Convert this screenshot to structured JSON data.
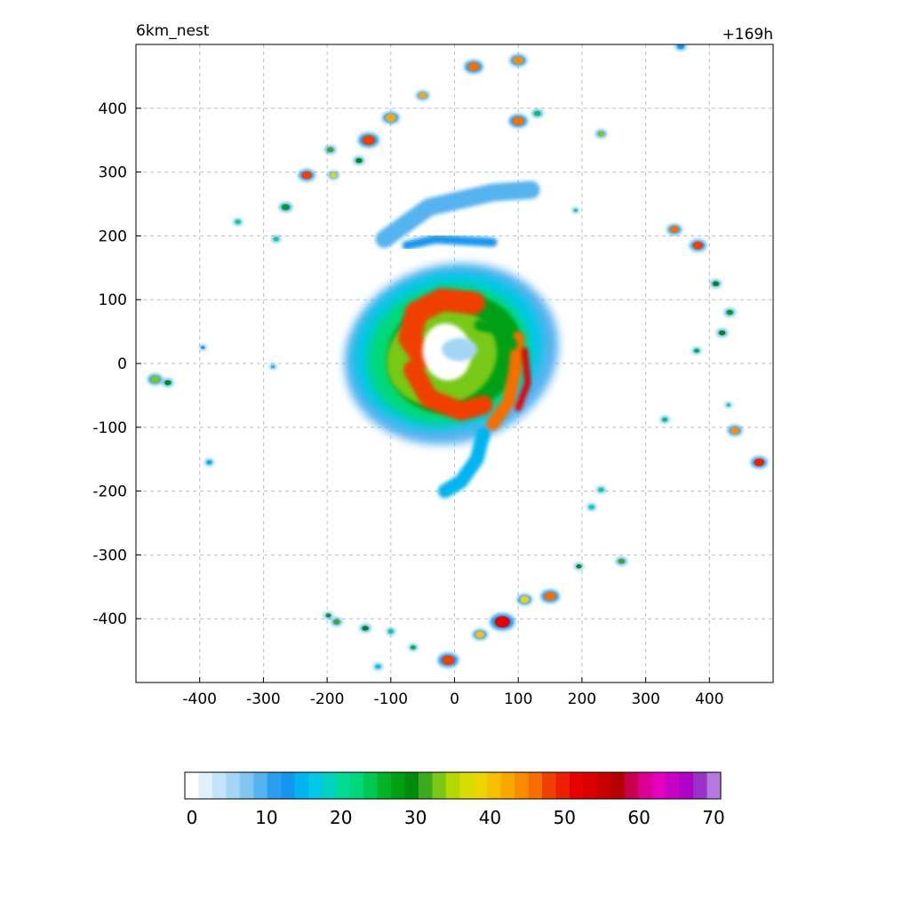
{
  "chart_data": {
    "type": "heatmap",
    "title_left": "6km_nest",
    "title_right": "+169h",
    "xlabel": "",
    "ylabel": "",
    "xlim": [
      -500,
      500
    ],
    "ylim": [
      -500,
      500
    ],
    "x_ticks": [
      -400,
      -300,
      -200,
      -100,
      0,
      100,
      200,
      300,
      400
    ],
    "y_ticks": [
      400,
      300,
      200,
      100,
      0,
      -100,
      -200,
      -300,
      -400
    ],
    "x_tick_labels": [
      "-400",
      "-300",
      "-200",
      "-100",
      "0",
      "100",
      "200",
      "300",
      "400"
    ],
    "y_tick_labels": [
      "400",
      "300",
      "200",
      "100",
      "0",
      "-100",
      "-200",
      "-300",
      "-400"
    ],
    "grid": true,
    "colorbar": {
      "min": 0,
      "max": 70,
      "step": 2,
      "tick_values": [
        0,
        10,
        20,
        30,
        40,
        50,
        60,
        70
      ],
      "tick_labels": [
        "0",
        "10",
        "20",
        "30",
        "40",
        "50",
        "60",
        "70"
      ],
      "colors": [
        "#ffffff",
        "#dff0fb",
        "#c2e4f8",
        "#a3d6f5",
        "#7fc6f1",
        "#55b3ee",
        "#2a9ff0",
        "#1496f0",
        "#00b4f0",
        "#00c8e6",
        "#00d4c0",
        "#00dc96",
        "#00d878",
        "#00c850",
        "#00b428",
        "#00a014",
        "#008c0a",
        "#3caa1e",
        "#78c814",
        "#b4d800",
        "#d8dc00",
        "#ecd400",
        "#f4c000",
        "#f8a800",
        "#f88c00",
        "#f46e00",
        "#f04000",
        "#ec2000",
        "#e80000",
        "#d80000",
        "#c80000",
        "#b40000",
        "#c8004c",
        "#dc0096",
        "#e600be",
        "#c800c8",
        "#b000c8",
        "#9a32c8",
        "#b478e0"
      ]
    },
    "features": [
      {
        "kind": "eyewall",
        "x": -5,
        "y": 20,
        "rx": 195,
        "ry": 160,
        "peak": 52
      },
      {
        "kind": "eye",
        "x": -10,
        "y": 20,
        "rx": 40,
        "ry": 45,
        "peak": 0
      },
      {
        "kind": "rainband",
        "x": 80,
        "y": 5,
        "peak": 52
      },
      {
        "kind": "outer-band-cell",
        "x": -232,
        "y": 295,
        "peak": 48
      },
      {
        "kind": "outer-band-cell",
        "x": -135,
        "y": 350,
        "peak": 48
      },
      {
        "kind": "outer-band-cell",
        "x": -100,
        "y": 385,
        "peak": 42
      },
      {
        "kind": "outer-band-cell",
        "x": -50,
        "y": 420,
        "peak": 42
      },
      {
        "kind": "outer-band-cell",
        "x": 30,
        "y": 465,
        "peak": 46
      },
      {
        "kind": "outer-band-cell",
        "x": 100,
        "y": 475,
        "peak": 44
      },
      {
        "kind": "outer-band-cell",
        "x": 100,
        "y": 380,
        "peak": 46
      },
      {
        "kind": "outer-band-cell",
        "x": 230,
        "y": 360,
        "peak": 34
      },
      {
        "kind": "outer-band-cell",
        "x": 345,
        "y": 210,
        "peak": 46
      },
      {
        "kind": "outer-band-cell",
        "x": 382,
        "y": 185,
        "peak": 48
      },
      {
        "kind": "outer-band-cell",
        "x": 440,
        "y": -105,
        "peak": 44
      },
      {
        "kind": "outer-band-cell",
        "x": 478,
        "y": -155,
        "peak": 50
      },
      {
        "kind": "outer-band-cell",
        "x": 75,
        "y": -405,
        "peak": 52
      },
      {
        "kind": "outer-band-cell",
        "x": 150,
        "y": -365,
        "peak": 46
      },
      {
        "kind": "outer-band-cell",
        "x": -10,
        "y": -465,
        "peak": 48
      },
      {
        "kind": "outer-band-cell",
        "x": -470,
        "y": -25,
        "peak": 34
      }
    ]
  }
}
